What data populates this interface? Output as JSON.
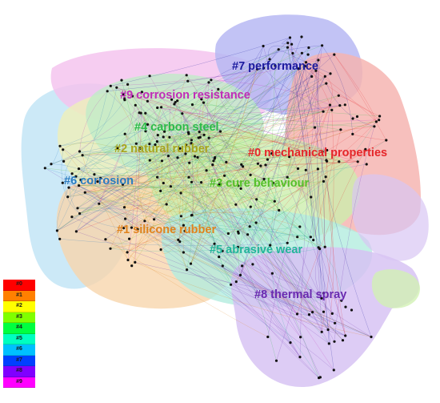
{
  "clusters": [
    {
      "id": "#0",
      "name": "mechanical properties",
      "label": "#0 mechanical properties",
      "color": "#e5262a"
    },
    {
      "id": "#1",
      "name": "silicone rubber",
      "label": "#1 silicone rubber",
      "color": "#e0831d"
    },
    {
      "id": "#2",
      "name": "natural rubber",
      "label": "#2 natural rubber",
      "color": "#a8a51e"
    },
    {
      "id": "#3",
      "name": "cure behaviour",
      "label": "#3 cure behaviour",
      "color": "#55c02a"
    },
    {
      "id": "#4",
      "name": "carbon steel",
      "label": "#4 carbon steel",
      "color": "#2dbb4a"
    },
    {
      "id": "#5",
      "name": "abrasive wear",
      "label": "#5 abrasive wear",
      "color": "#22b59a"
    },
    {
      "id": "#6",
      "name": "corrosion",
      "label": "#6 corrosion",
      "color": "#2a7cc0"
    },
    {
      "id": "#7",
      "name": "performance",
      "label": "#7 performance",
      "color": "#1b1b9e"
    },
    {
      "id": "#8",
      "name": "thermal spray",
      "label": "#8 thermal spray",
      "color": "#6a2ab0"
    },
    {
      "id": "#9",
      "name": "corrosion resistance",
      "label": "#9 corrosion resistance",
      "color": "#c02cb8"
    }
  ],
  "legend": [
    {
      "label": "#0",
      "color": "#ff0000"
    },
    {
      "label": "#1",
      "color": "#ff8000"
    },
    {
      "label": "#2",
      "color": "#ffff00"
    },
    {
      "label": "#3",
      "color": "#80ff00"
    },
    {
      "label": "#4",
      "color": "#00ff40"
    },
    {
      "label": "#5",
      "color": "#00ffc0"
    },
    {
      "label": "#6",
      "color": "#00c0ff"
    },
    {
      "label": "#7",
      "color": "#0040ff"
    },
    {
      "label": "#8",
      "color": "#8000ff"
    },
    {
      "label": "#9",
      "color": "#ff00ff"
    }
  ]
}
